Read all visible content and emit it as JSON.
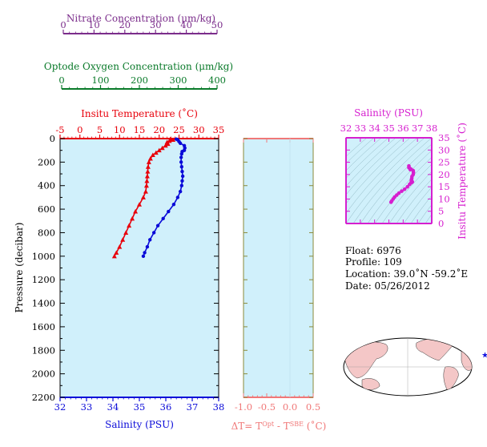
{
  "colors": {
    "nitrate": "#7b2d8b",
    "oxygen": "#0a7a2a",
    "temperature": "#e8000b",
    "salinity": "#0a0ad8",
    "ts": "#d61fcf",
    "dt": "#f07878",
    "panel_bg": "#d0f0fb",
    "dt_frame": "#8a8a3a"
  },
  "chart_data": [
    {
      "type": "line",
      "panel": "profile",
      "ylabel": "Pressure (decibar)",
      "ylim": [
        2200,
        0
      ],
      "y_ticks": [
        "0",
        "200",
        "400",
        "600",
        "800",
        "1000",
        "1200",
        "1400",
        "1600",
        "1800",
        "2000",
        "2200"
      ],
      "axes": {
        "temperature": {
          "label": "Insitu Temperature (˚C)",
          "lim": [
            -5,
            35
          ],
          "ticks": [
            "-5",
            "0",
            "5",
            "10",
            "15",
            "20",
            "25",
            "30",
            "35"
          ]
        },
        "salinity": {
          "label": "Salinity (PSU)",
          "lim": [
            32,
            38
          ],
          "ticks": [
            "32",
            "33",
            "34",
            "35",
            "36",
            "37",
            "38"
          ]
        },
        "nitrate": {
          "label": "Nitrate Concentration (μm/kg)",
          "lim": [
            0,
            50
          ],
          "ticks": [
            "0",
            "10",
            "20",
            "30",
            "40",
            "50"
          ]
        },
        "oxygen": {
          "label": "Optode Oxygen Concentration (μm/kg)",
          "lim": [
            0,
            400
          ],
          "ticks": [
            "0",
            "100",
            "200",
            "300",
            "400"
          ]
        }
      },
      "series": [
        {
          "axis": "temperature",
          "marker": "triangle",
          "points": [
            [
              22.8,
              5
            ],
            [
              23.5,
              10
            ],
            [
              22.6,
              20
            ],
            [
              22.0,
              30
            ],
            [
              22.2,
              45
            ],
            [
              21.6,
              60
            ],
            [
              20.8,
              80
            ],
            [
              20.0,
              100
            ],
            [
              19.2,
              120
            ],
            [
              18.4,
              140
            ],
            [
              17.8,
              170
            ],
            [
              17.4,
              200
            ],
            [
              17.2,
              240
            ],
            [
              17.1,
              280
            ],
            [
              17.0,
              320
            ],
            [
              16.9,
              360
            ],
            [
              16.8,
              400
            ],
            [
              16.6,
              450
            ],
            [
              16.0,
              500
            ],
            [
              15.0,
              560
            ],
            [
              14.0,
              620
            ],
            [
              13.2,
              680
            ],
            [
              12.4,
              740
            ],
            [
              11.6,
              800
            ],
            [
              10.8,
              860
            ],
            [
              10.0,
              920
            ],
            [
              9.2,
              970
            ],
            [
              8.7,
              1000
            ]
          ]
        },
        {
          "axis": "salinity",
          "marker": "dot",
          "points": [
            [
              36.4,
              5
            ],
            [
              36.45,
              10
            ],
            [
              36.5,
              25
            ],
            [
              36.55,
              40
            ],
            [
              36.7,
              60
            ],
            [
              36.72,
              80
            ],
            [
              36.7,
              100
            ],
            [
              36.62,
              110
            ],
            [
              36.6,
              130
            ],
            [
              36.58,
              160
            ],
            [
              36.58,
              200
            ],
            [
              36.6,
              240
            ],
            [
              36.62,
              280
            ],
            [
              36.64,
              320
            ],
            [
              36.62,
              360
            ],
            [
              36.6,
              400
            ],
            [
              36.55,
              450
            ],
            [
              36.45,
              500
            ],
            [
              36.3,
              560
            ],
            [
              36.1,
              620
            ],
            [
              35.9,
              680
            ],
            [
              35.7,
              740
            ],
            [
              35.55,
              800
            ],
            [
              35.4,
              860
            ],
            [
              35.3,
              920
            ],
            [
              35.2,
              970
            ],
            [
              35.15,
              1000
            ]
          ]
        }
      ]
    },
    {
      "type": "line",
      "panel": "delta-t",
      "xlabel": "ΔT= T",
      "xlabel_sup1": "Opt",
      "xlabel_mid": " - T",
      "xlabel_sup2": "SBE",
      "xlabel_tail": " (˚C)",
      "xlim": [
        -1.0,
        0.5
      ],
      "x_ticks": [
        "-1.0",
        "-0.5",
        "0.0",
        "0.5"
      ],
      "ylim": [
        2200,
        0
      ],
      "series": []
    },
    {
      "type": "scatter",
      "panel": "theta-s",
      "xlabel": "Salinity (PSU)",
      "ylabel": "Insitu Temperature (˚C)",
      "xlim": [
        32,
        38
      ],
      "ylim": [
        0,
        35
      ],
      "x_ticks": [
        "32",
        "33",
        "34",
        "35",
        "36",
        "37",
        "38"
      ],
      "y_ticks": [
        "0",
        "5",
        "10",
        "15",
        "20",
        "25",
        "30",
        "35"
      ],
      "series": [
        {
          "points": [
            [
              35.15,
              8.7
            ],
            [
              35.2,
              9.2
            ],
            [
              35.3,
              10.0
            ],
            [
              35.4,
              10.8
            ],
            [
              35.55,
              11.6
            ],
            [
              35.7,
              12.4
            ],
            [
              35.9,
              13.2
            ],
            [
              36.1,
              14.0
            ],
            [
              36.3,
              15.0
            ],
            [
              36.45,
              16.0
            ],
            [
              36.55,
              16.6
            ],
            [
              36.6,
              16.8
            ],
            [
              36.62,
              16.9
            ],
            [
              36.64,
              17.0
            ],
            [
              36.62,
              17.1
            ],
            [
              36.6,
              17.2
            ],
            [
              36.58,
              17.4
            ],
            [
              36.58,
              17.8
            ],
            [
              36.6,
              18.4
            ],
            [
              36.62,
              19.2
            ],
            [
              36.7,
              20.0
            ],
            [
              36.72,
              20.8
            ],
            [
              36.7,
              21.6
            ],
            [
              36.55,
              22.2
            ],
            [
              36.5,
              22.0
            ],
            [
              36.45,
              22.6
            ],
            [
              36.4,
              23.5
            ],
            [
              36.4,
              22.8
            ]
          ]
        }
      ]
    }
  ],
  "info": {
    "float": "Float:  6976",
    "profile": "Profile:  109",
    "location": "Location:  39.0˚N  -59.2˚E",
    "date": "Date:  05/26/2012"
  },
  "map": {
    "marker_lon": -59.2,
    "marker_lat": 39.0,
    "land_color": "#f4c7c7",
    "marker_color": "#1a1ae0"
  }
}
